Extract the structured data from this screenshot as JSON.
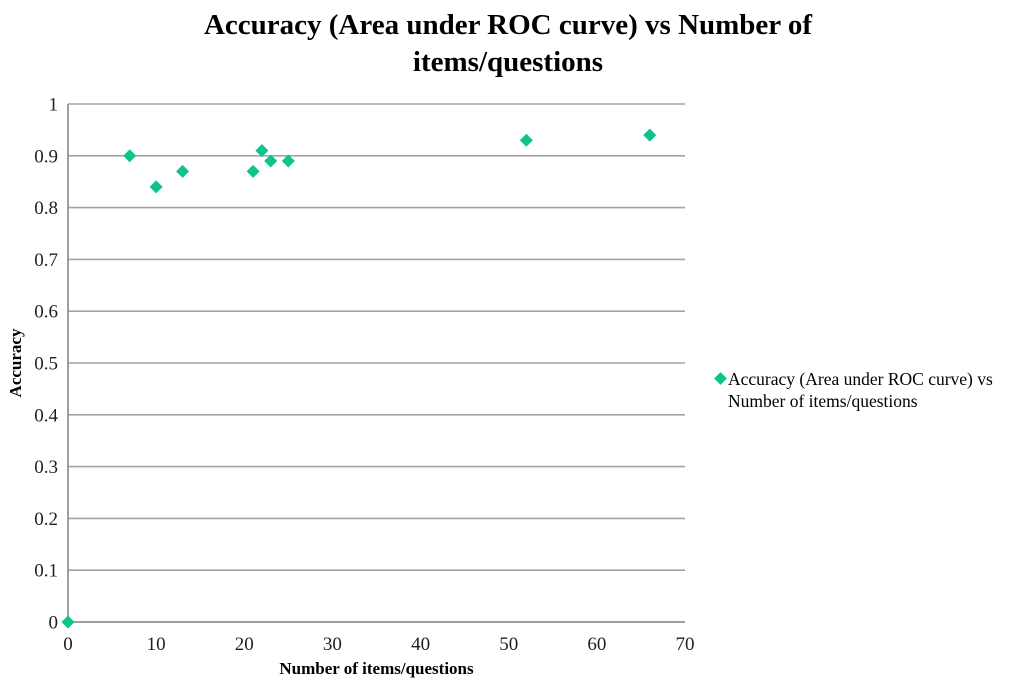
{
  "page": {
    "background": "#FFFFFF"
  },
  "chart_data": {
    "type": "scatter",
    "title": "Accuracy (Area under ROC curve) vs Number of\nitems/questions",
    "xlabel": "Number of items/questions",
    "ylabel": "Accuracy",
    "xlim": [
      0,
      70
    ],
    "ylim": [
      0,
      1
    ],
    "xticks": {
      "values": [
        0,
        10,
        20,
        30,
        40,
        50,
        60,
        70
      ],
      "labels": [
        "0",
        "10",
        "20",
        "30",
        "40",
        "50",
        "60",
        "70"
      ]
    },
    "yticks": {
      "values": [
        0,
        0.1,
        0.2,
        0.3,
        0.4,
        0.5,
        0.6,
        0.7,
        0.8,
        0.9,
        1
      ],
      "labels": [
        "0",
        "0.1",
        "0.2",
        "0.3",
        "0.4",
        "0.5",
        "0.6",
        "0.7",
        "0.8",
        "0.9",
        "1"
      ]
    },
    "grid": {
      "horizontal": true,
      "vertical": false,
      "color": "#A3A3A3"
    },
    "axis_color": "#8F8F8F",
    "legend": {
      "position": "right",
      "label": "Accuracy (Area under ROC curve) vs\nNumber of items/questions"
    },
    "series": [
      {
        "name": "Accuracy (Area under ROC curve) vs Number of items/questions",
        "marker": "diamond",
        "color": "#0FC28E",
        "points": [
          [
            0,
            0
          ],
          [
            7,
            0.9
          ],
          [
            10,
            0.84
          ],
          [
            13,
            0.87
          ],
          [
            21,
            0.87
          ],
          [
            22,
            0.91
          ],
          [
            23,
            0.89
          ],
          [
            25,
            0.89
          ],
          [
            52,
            0.93
          ],
          [
            66,
            0.94
          ]
        ]
      }
    ]
  }
}
